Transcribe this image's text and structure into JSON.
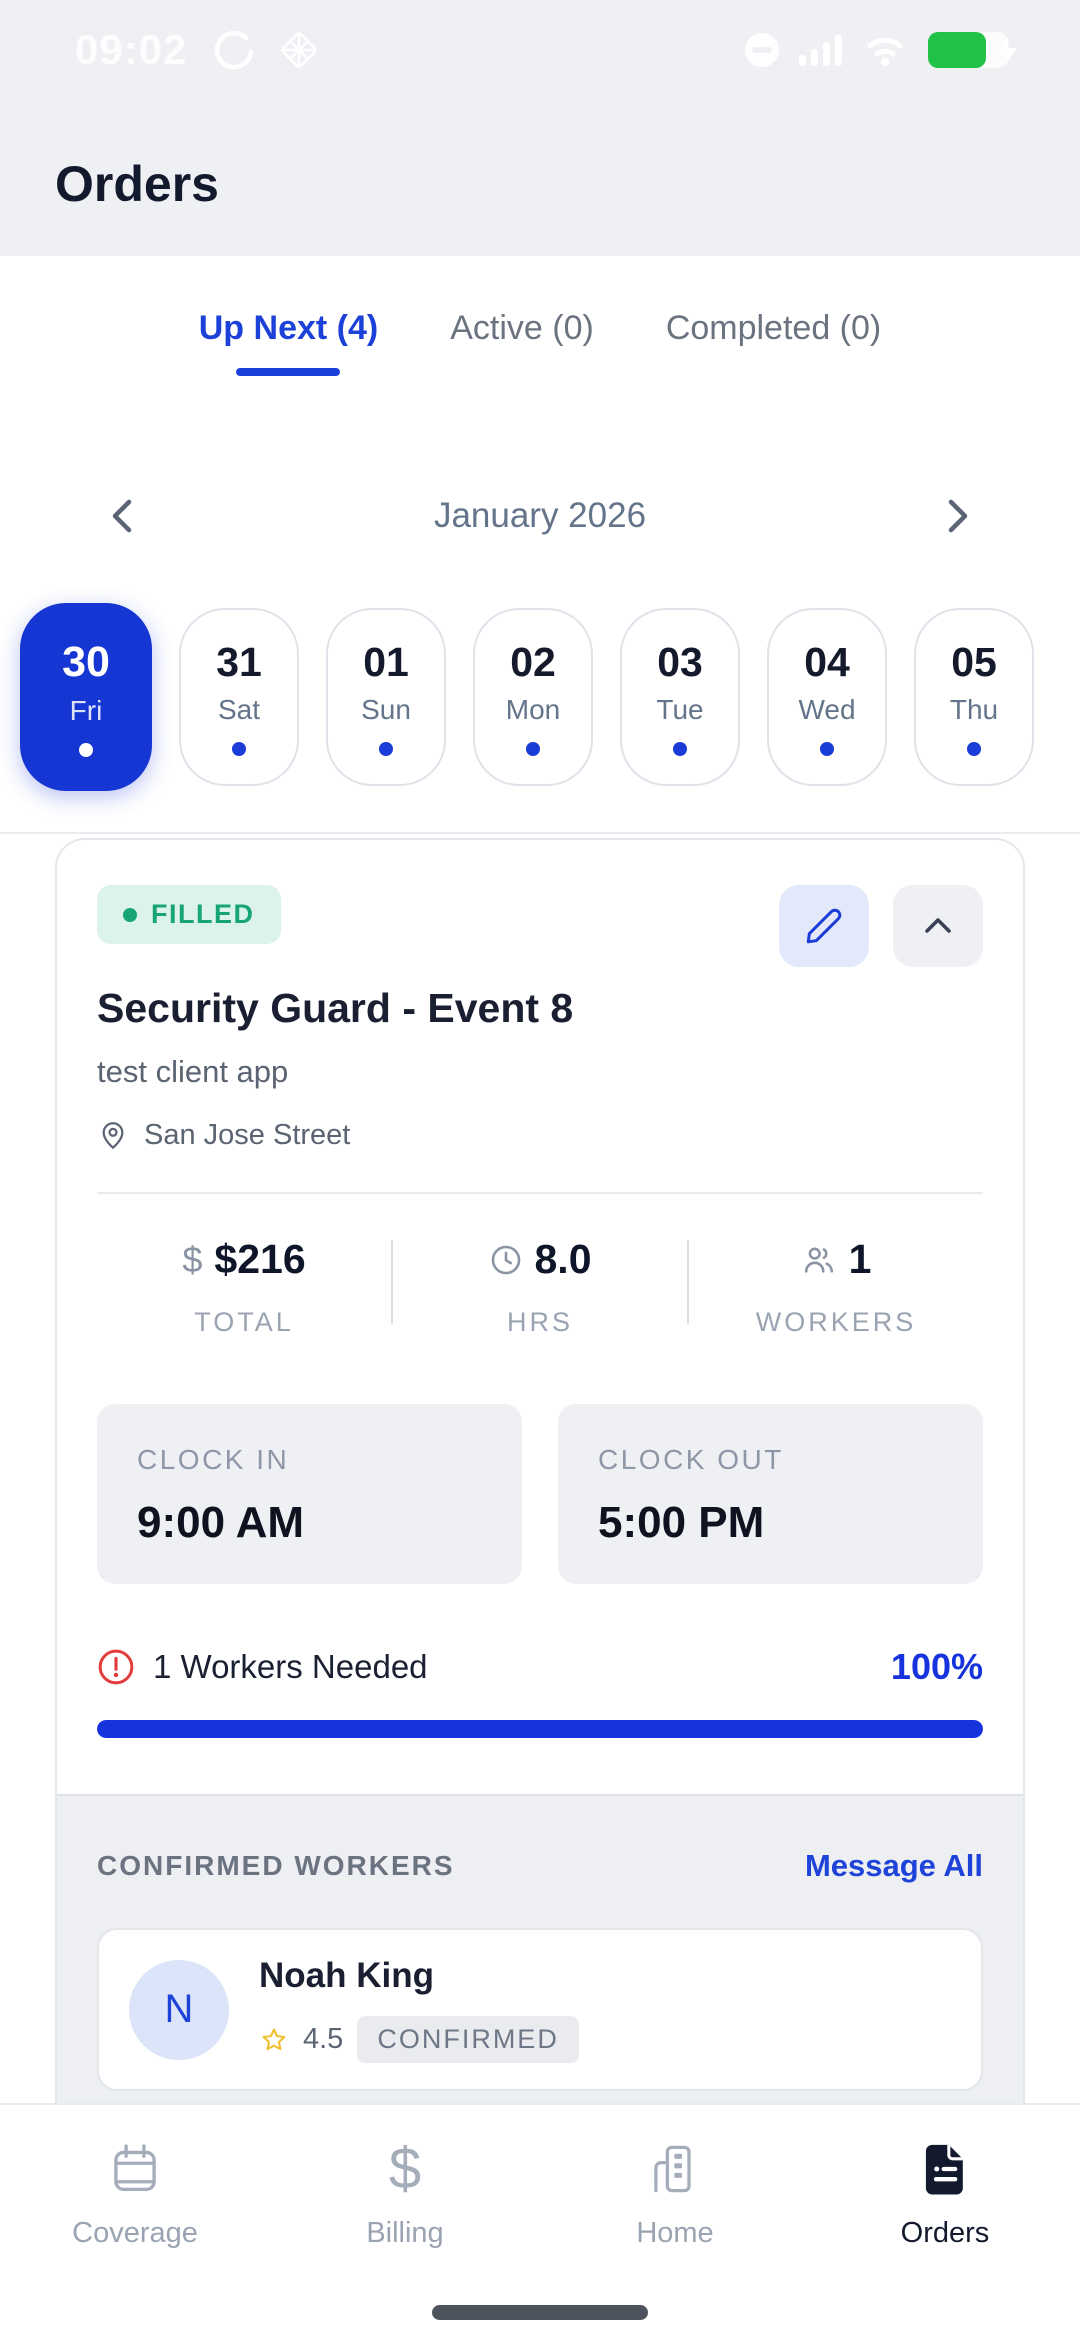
{
  "status_bar": {
    "time": "09:02"
  },
  "header": {
    "title": "Orders"
  },
  "tabs": [
    {
      "label": "Up Next (4)",
      "active": true
    },
    {
      "label": "Active (0)",
      "active": false
    },
    {
      "label": "Completed (0)",
      "active": false
    }
  ],
  "calendar": {
    "month": "January 2026",
    "days": [
      {
        "num": "30",
        "day": "Fri",
        "selected": true
      },
      {
        "num": "31",
        "day": "Sat",
        "selected": false
      },
      {
        "num": "01",
        "day": "Sun",
        "selected": false
      },
      {
        "num": "02",
        "day": "Mon",
        "selected": false
      },
      {
        "num": "03",
        "day": "Tue",
        "selected": false
      },
      {
        "num": "04",
        "day": "Wed",
        "selected": false
      },
      {
        "num": "05",
        "day": "Thu",
        "selected": false
      }
    ]
  },
  "order_card": {
    "status_badge": "FILLED",
    "title": "Security Guard - Event 8",
    "client": "test client app",
    "location": "San Jose Street",
    "stats": [
      {
        "value": "$216",
        "label": "TOTAL",
        "icon": "dollar-icon"
      },
      {
        "value": "8.0",
        "label": "HRS",
        "icon": "clock-icon"
      },
      {
        "value": "1",
        "label": "WORKERS",
        "icon": "people-icon"
      }
    ],
    "clock_in": {
      "label": "CLOCK IN",
      "value": "9:00 AM"
    },
    "clock_out": {
      "label": "CLOCK OUT",
      "value": "5:00 PM"
    },
    "workers_needed": "1 Workers Needed",
    "fill_percent": "100%",
    "fill_value": 100,
    "confirmed": {
      "heading": "CONFIRMED WORKERS",
      "action": "Message All",
      "workers": [
        {
          "initial": "N",
          "name": "Noah King",
          "rating": "4.5",
          "status": "CONFIRMED"
        }
      ]
    }
  },
  "bottom_nav": [
    {
      "label": "Coverage",
      "active": false
    },
    {
      "label": "Billing",
      "active": false
    },
    {
      "label": "Home",
      "active": false
    },
    {
      "label": "Orders",
      "active": true
    }
  ],
  "icons": {
    "dollar": "$"
  },
  "colors": {
    "accent_blue": "#1636d4",
    "link_blue": "#1d43d8",
    "success_green": "#17a673",
    "badge_green_bg": "#dcf3e9",
    "alert_red": "#e23d3d",
    "battery_green": "#22c248",
    "topbar_bg": "#eef0f4",
    "section_gray": "#edeff3"
  }
}
